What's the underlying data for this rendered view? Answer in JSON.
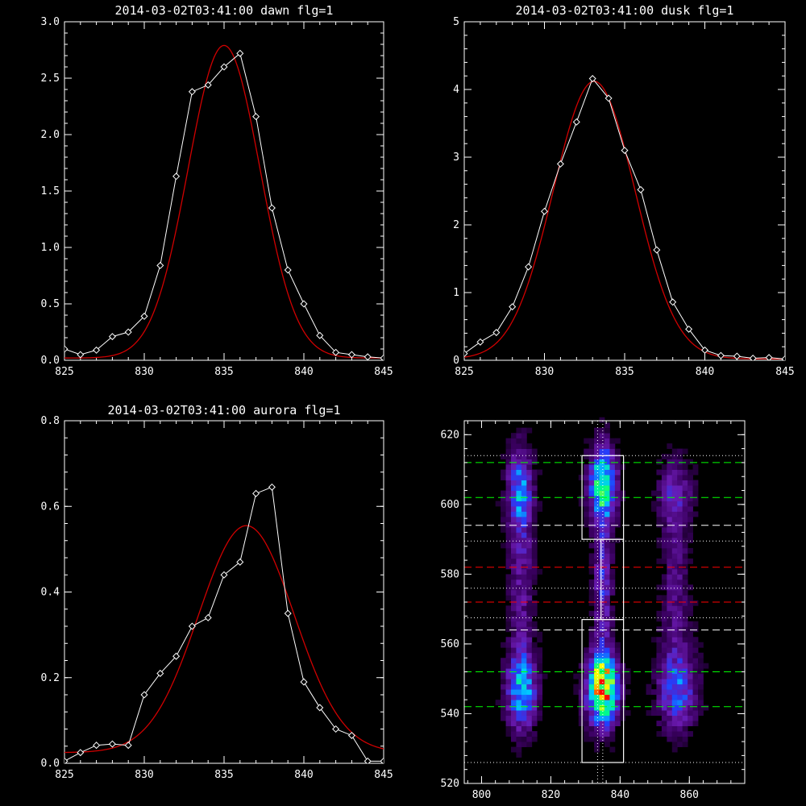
{
  "figure": {
    "background": "#000000",
    "foreground": "#ffffff",
    "fit_color": "#d00000"
  },
  "chart_data": [
    {
      "id": "dawn",
      "type": "line",
      "title": "2014-03-02T03:41:00 dawn flg=1",
      "xlim": [
        825,
        845
      ],
      "ylim": [
        0,
        3.0
      ],
      "xticks": [
        825,
        830,
        835,
        840,
        845
      ],
      "yticks": [
        0.0,
        0.5,
        1.0,
        1.5,
        2.0,
        2.5,
        3.0
      ],
      "ytick_labels": [
        "0.0",
        "0.5",
        "1.0",
        "1.5",
        "2.0",
        "2.5",
        "3.0"
      ],
      "series": [
        {
          "style": "measured",
          "color": "#ffffff",
          "marker": "diamond",
          "x": [
            825,
            826,
            827,
            828,
            829,
            830,
            831,
            832,
            833,
            834,
            835,
            836,
            837,
            838,
            839,
            840,
            841,
            842,
            843,
            844,
            845
          ],
          "y": [
            0.1,
            0.05,
            0.09,
            0.21,
            0.25,
            0.39,
            0.84,
            1.63,
            2.38,
            2.44,
            2.6,
            2.72,
            2.16,
            1.35,
            0.8,
            0.5,
            0.22,
            0.07,
            0.05,
            0.03,
            0.02
          ]
        },
        {
          "style": "fit",
          "color": "#d00000",
          "gaussian": {
            "amplitude": 2.77,
            "center": 835.0,
            "sigma": 2.25,
            "baseline": 0.02
          }
        }
      ]
    },
    {
      "id": "dusk",
      "type": "line",
      "title": "2014-03-02T03:41:00 dusk flg=1",
      "xlim": [
        825,
        845
      ],
      "ylim": [
        0,
        5
      ],
      "xticks": [
        825,
        830,
        835,
        840,
        845
      ],
      "yticks": [
        0,
        1,
        2,
        3,
        4,
        5
      ],
      "ytick_labels": [
        "0",
        "1",
        "2",
        "3",
        "4",
        "5"
      ],
      "series": [
        {
          "style": "measured",
          "color": "#ffffff",
          "marker": "diamond",
          "x": [
            825,
            826,
            827,
            828,
            829,
            830,
            831,
            832,
            833,
            834,
            835,
            836,
            837,
            838,
            839,
            840,
            841,
            842,
            843,
            844,
            845
          ],
          "y": [
            0.1,
            0.27,
            0.41,
            0.79,
            1.38,
            2.2,
            2.9,
            3.52,
            4.16,
            3.87,
            3.1,
            2.52,
            1.63,
            0.86,
            0.46,
            0.15,
            0.07,
            0.06,
            0.03,
            0.04,
            0.02
          ]
        },
        {
          "style": "fit",
          "color": "#d00000",
          "gaussian": {
            "amplitude": 4.1,
            "center": 833.1,
            "sigma": 2.55,
            "baseline": 0.02
          }
        }
      ]
    },
    {
      "id": "aurora",
      "type": "line",
      "title": "2014-03-02T03:41:00 aurora flg=1",
      "xlim": [
        825,
        845
      ],
      "ylim": [
        0,
        0.8
      ],
      "xticks": [
        825,
        830,
        835,
        840,
        845
      ],
      "yticks": [
        0.0,
        0.2,
        0.4,
        0.6,
        0.8
      ],
      "ytick_labels": [
        "0.0",
        "0.2",
        "0.4",
        "0.6",
        "0.8"
      ],
      "series": [
        {
          "style": "measured",
          "color": "#ffffff",
          "marker": "diamond",
          "x": [
            825,
            826,
            827,
            828,
            829,
            830,
            831,
            832,
            833,
            834,
            835,
            836,
            837,
            838,
            839,
            840,
            841,
            842,
            843,
            844,
            845
          ],
          "y": [
            0.005,
            0.025,
            0.042,
            0.045,
            0.042,
            0.16,
            0.21,
            0.25,
            0.32,
            0.34,
            0.44,
            0.47,
            0.63,
            0.645,
            0.35,
            0.19,
            0.13,
            0.08,
            0.065,
            0.005,
            0.005
          ]
        },
        {
          "style": "fit",
          "color": "#d00000",
          "gaussian": {
            "amplitude": 0.53,
            "center": 836.4,
            "sigma": 3.0,
            "baseline": 0.025
          }
        }
      ]
    },
    {
      "id": "image",
      "type": "heatmap",
      "title": "",
      "xlim": [
        795,
        876
      ],
      "ylim": [
        520,
        624
      ],
      "xticks": [
        800,
        820,
        840,
        860
      ],
      "yticks": [
        520,
        540,
        560,
        580,
        600,
        620
      ],
      "colormap": [
        "#000000",
        "#3a0060",
        "#6a1ab0",
        "#2040ff",
        "#00c8ff",
        "#00ff80",
        "#ffff00",
        "#ff0000"
      ],
      "blobs": [
        {
          "x": 835.0,
          "y": 547.0,
          "sx": 3.0,
          "sy": 7.0,
          "amp": 0.95
        },
        {
          "x": 835.0,
          "y": 606.0,
          "sx": 2.6,
          "sy": 7.5,
          "amp": 0.72
        },
        {
          "x": 811.5,
          "y": 547.0,
          "sx": 3.0,
          "sy": 8.0,
          "amp": 0.55
        },
        {
          "x": 811.0,
          "y": 604.0,
          "sx": 2.6,
          "sy": 8.5,
          "amp": 0.45
        },
        {
          "x": 856.5,
          "y": 547.0,
          "sx": 4.0,
          "sy": 8.0,
          "amp": 0.38
        },
        {
          "x": 856.0,
          "y": 603.0,
          "sx": 3.5,
          "sy": 7.0,
          "amp": 0.24
        },
        {
          "x": 835.0,
          "y": 577.0,
          "sx": 1.8,
          "sy": 14.0,
          "amp": 0.32
        },
        {
          "x": 811.5,
          "y": 578.0,
          "sx": 2.5,
          "sy": 14.0,
          "amp": 0.22
        },
        {
          "x": 856.0,
          "y": 576.0,
          "sx": 3.0,
          "sy": 16.0,
          "amp": 0.18
        }
      ],
      "boxes": [
        {
          "x0": 829,
          "x1": 841,
          "y0": 590,
          "y1": 614
        },
        {
          "x0": 829,
          "x1": 841,
          "y0": 526,
          "y1": 567
        },
        {
          "x0": 834.5,
          "x1": 841,
          "y0": 567,
          "y1": 590
        }
      ],
      "vertical_dotted_lines": [
        833.5,
        835.0
      ],
      "hlines": [
        {
          "y": 612,
          "color": "#00ff00",
          "dash": "long"
        },
        {
          "y": 602,
          "color": "#00ff00",
          "dash": "long"
        },
        {
          "y": 594,
          "color": "#ffffff",
          "dash": "long"
        },
        {
          "y": 582,
          "color": "#ff0000",
          "dash": "long"
        },
        {
          "y": 572,
          "color": "#ff0000",
          "dash": "long"
        },
        {
          "y": 564,
          "color": "#ffffff",
          "dash": "long"
        },
        {
          "y": 552,
          "color": "#00ff00",
          "dash": "long"
        },
        {
          "y": 542,
          "color": "#00ff00",
          "dash": "long"
        },
        {
          "y": 614,
          "color": "#ffffff",
          "dash": "dotted"
        },
        {
          "y": 589.5,
          "color": "#ffffff",
          "dash": "dotted"
        },
        {
          "y": 576,
          "color": "#ffffff",
          "dash": "dotted"
        },
        {
          "y": 567.5,
          "color": "#ffffff",
          "dash": "dotted"
        },
        {
          "y": 526,
          "color": "#ffffff",
          "dash": "dotted"
        }
      ]
    }
  ]
}
